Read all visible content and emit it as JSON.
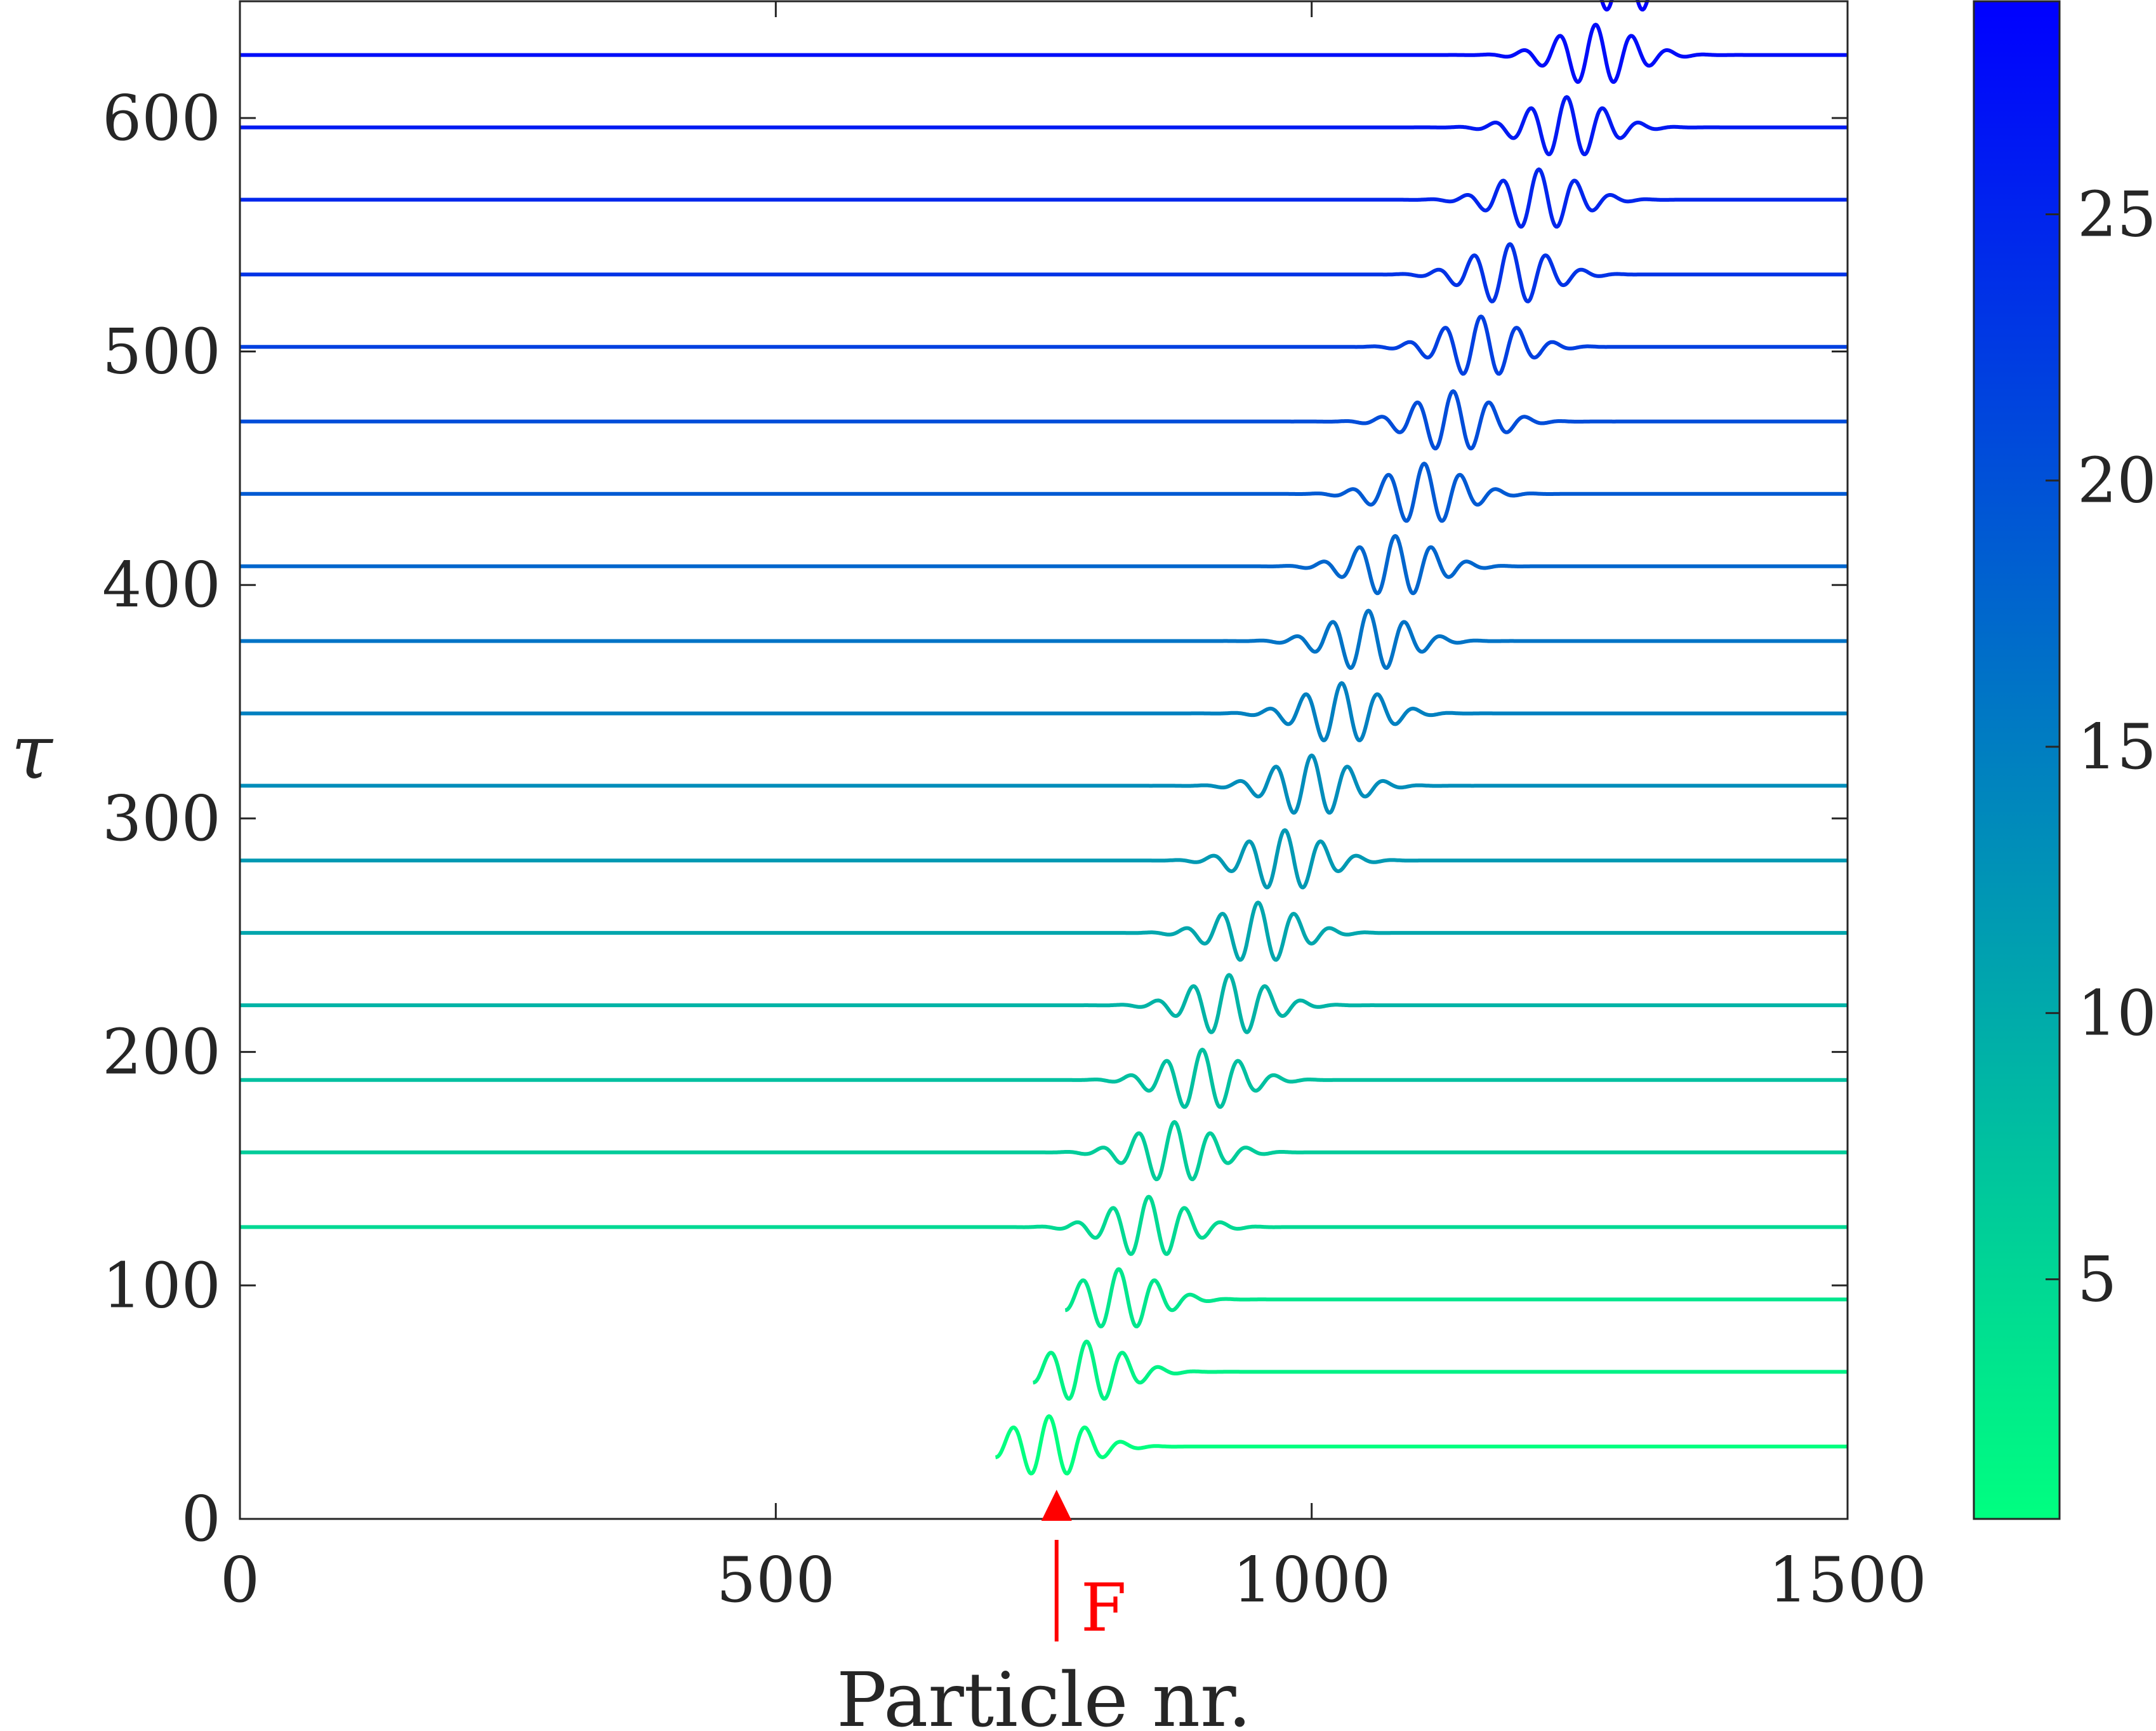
{
  "chart_data": {
    "type": "line",
    "xlabel": "Particle nr.",
    "ylabel": "τ",
    "xlim": [
      0,
      1500
    ],
    "ylim": [
      0,
      650
    ],
    "xticks": [
      "0",
      "500",
      "1000",
      "1500"
    ],
    "yticks": [
      "0",
      "100",
      "200",
      "300",
      "400",
      "500",
      "600"
    ],
    "grid": false,
    "series_description": "waterfall of 21 wave packets; each baseline at tau offset, packet center shifts right with time",
    "waterfall": {
      "baselines": [
        31,
        63,
        94,
        125,
        157,
        188,
        220,
        251,
        282,
        314,
        345,
        376,
        408,
        439,
        470,
        502,
        533,
        565,
        596,
        627,
        658
      ],
      "packet_centers": [
        755,
        790,
        820,
        848,
        872,
        898,
        923,
        950,
        975,
        1000,
        1028,
        1053,
        1078,
        1105,
        1132,
        1158,
        1185,
        1212,
        1238,
        1265,
        1292
      ],
      "packet_amplitude": 13,
      "packet_width": 35,
      "packet_wavelength": 34
    },
    "colorbar": {
      "range": [
        0.5,
        29
      ],
      "ticks": [
        "5",
        "10",
        "15",
        "20",
        "25"
      ],
      "color_low": "#00ff80",
      "color_high": "#0000ff"
    },
    "annotation": {
      "text": "F",
      "x": 762,
      "color": "#ff0000"
    }
  }
}
